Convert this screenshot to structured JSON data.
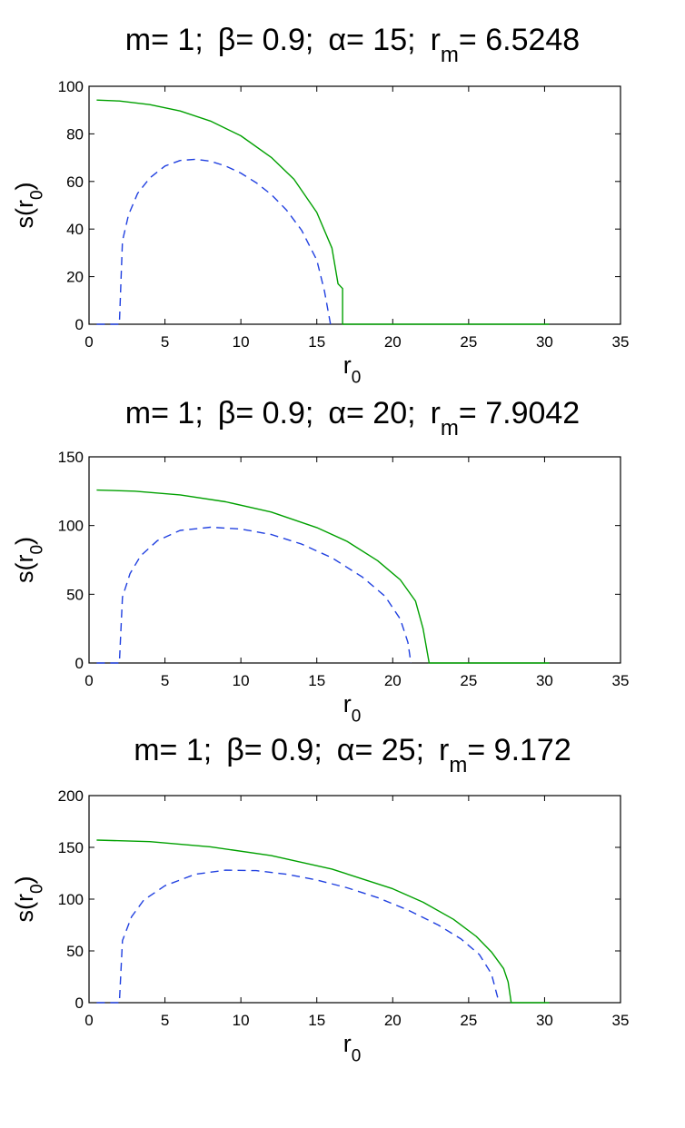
{
  "chart_data": [
    {
      "type": "line",
      "title": {
        "m": "m= 1;",
        "beta": "β= 0.9;",
        "alpha": "α= 15;",
        "rm_label": "r",
        "rm_sub": "m",
        "rm_value": "= 6.5248"
      },
      "xlabel": {
        "base": "r",
        "sub": "0"
      },
      "ylabel": {
        "base": "s(r",
        "sub": "0",
        "close": ")"
      },
      "xlim": [
        0,
        35
      ],
      "ylim": [
        0,
        100
      ],
      "xticks": [
        0,
        5,
        10,
        15,
        20,
        25,
        30,
        35
      ],
      "yticks": [
        0,
        20,
        40,
        60,
        80,
        100
      ],
      "grid": false,
      "colors": {
        "solid": "#00a000",
        "dashed": "#2040e0"
      },
      "series": [
        {
          "style": "solid",
          "x": [
            0.5,
            2,
            4,
            6,
            8,
            10,
            12,
            13.5,
            15,
            16.0,
            16.4,
            16.7,
            16.7,
            18,
            20,
            22,
            24,
            26,
            28,
            30.3
          ],
          "y": [
            94.2,
            93.8,
            92.3,
            89.6,
            85.4,
            79.2,
            70.1,
            60.9,
            47.0,
            32.0,
            17.0,
            15.0,
            0,
            0,
            0,
            0,
            0,
            0,
            0,
            0
          ]
        },
        {
          "style": "dashed",
          "x": [
            0.5,
            1.5,
            2.0,
            2.2,
            2.6,
            3.2,
            4,
            5,
            6,
            7,
            8,
            9,
            10,
            11,
            12,
            13,
            14,
            15,
            15.5,
            15.9
          ],
          "y": [
            0,
            0,
            0,
            35.0,
            46.0,
            55.0,
            61.5,
            66.5,
            68.8,
            69.3,
            68.5,
            66.5,
            63.5,
            59.5,
            54.5,
            48.0,
            39.5,
            27.0,
            14.0,
            0
          ]
        }
      ]
    },
    {
      "type": "line",
      "title": {
        "m": "m= 1;",
        "beta": "β= 0.9;",
        "alpha": "α= 20;",
        "rm_label": "r",
        "rm_sub": "m",
        "rm_value": "= 7.9042"
      },
      "xlabel": {
        "base": "r",
        "sub": "0"
      },
      "ylabel": {
        "base": "s(r",
        "sub": "0",
        "close": ")"
      },
      "xlim": [
        0,
        35
      ],
      "ylim": [
        0,
        150
      ],
      "xticks": [
        0,
        5,
        10,
        15,
        20,
        25,
        30,
        35
      ],
      "yticks": [
        0,
        50,
        100,
        150
      ],
      "grid": false,
      "colors": {
        "solid": "#00a000",
        "dashed": "#2040e0"
      },
      "series": [
        {
          "style": "solid",
          "x": [
            0.5,
            3,
            6,
            9,
            12,
            15,
            17,
            19,
            20.5,
            21.5,
            22.0,
            22.4,
            22.4,
            24,
            26,
            28,
            30.3
          ],
          "y": [
            125.8,
            125.0,
            122.3,
            117.3,
            109.8,
            98.5,
            88.5,
            74.5,
            60.5,
            45.0,
            25.0,
            0,
            0,
            0,
            0,
            0,
            0
          ]
        },
        {
          "style": "dashed",
          "x": [
            0.5,
            1.5,
            2.0,
            2.2,
            2.7,
            3.4,
            4.5,
            6,
            8,
            10,
            12,
            14,
            16,
            18,
            19.5,
            20.5,
            21.0,
            21.2
          ],
          "y": [
            0,
            0,
            0,
            48.0,
            65.0,
            78.0,
            89.0,
            96.5,
            98.8,
            97.5,
            93.5,
            86.5,
            76.5,
            62.5,
            48.5,
            32.0,
            15.0,
            0
          ]
        }
      ]
    },
    {
      "type": "line",
      "title": {
        "m": "m= 1;",
        "beta": "β= 0.9;",
        "alpha": "α= 25;",
        "rm_label": "r",
        "rm_sub": "m",
        "rm_value": "= 9.172"
      },
      "xlabel": {
        "base": "r",
        "sub": "0"
      },
      "ylabel": {
        "base": "s(r",
        "sub": "0",
        "close": ")"
      },
      "xlim": [
        0,
        35
      ],
      "ylim": [
        0,
        200
      ],
      "xticks": [
        0,
        5,
        10,
        15,
        20,
        25,
        30,
        35
      ],
      "yticks": [
        0,
        50,
        100,
        150,
        200
      ],
      "grid": false,
      "colors": {
        "solid": "#00a000",
        "dashed": "#2040e0"
      },
      "series": [
        {
          "style": "solid",
          "x": [
            0.5,
            4,
            8,
            12,
            16,
            20,
            22,
            24,
            25.5,
            26.5,
            27.3,
            27.6,
            27.8,
            27.8,
            29,
            30.3
          ],
          "y": [
            157.0,
            155.5,
            150.5,
            142.0,
            129.0,
            110.0,
            97.0,
            80.5,
            64.0,
            49.0,
            33.0,
            20.0,
            0,
            0,
            0,
            0
          ]
        },
        {
          "style": "dashed",
          "x": [
            0.5,
            1.5,
            2.0,
            2.2,
            2.8,
            3.6,
            5,
            7,
            9,
            11,
            13,
            15,
            17,
            19,
            21,
            23,
            24.5,
            25.7,
            26.5,
            27.0
          ],
          "y": [
            0,
            0,
            0,
            60.0,
            83.0,
            99.0,
            113.0,
            124.0,
            128.0,
            127.5,
            124.0,
            118.5,
            111.0,
            101.5,
            89.5,
            75.0,
            61.5,
            46.5,
            28.0,
            0
          ]
        }
      ]
    }
  ]
}
